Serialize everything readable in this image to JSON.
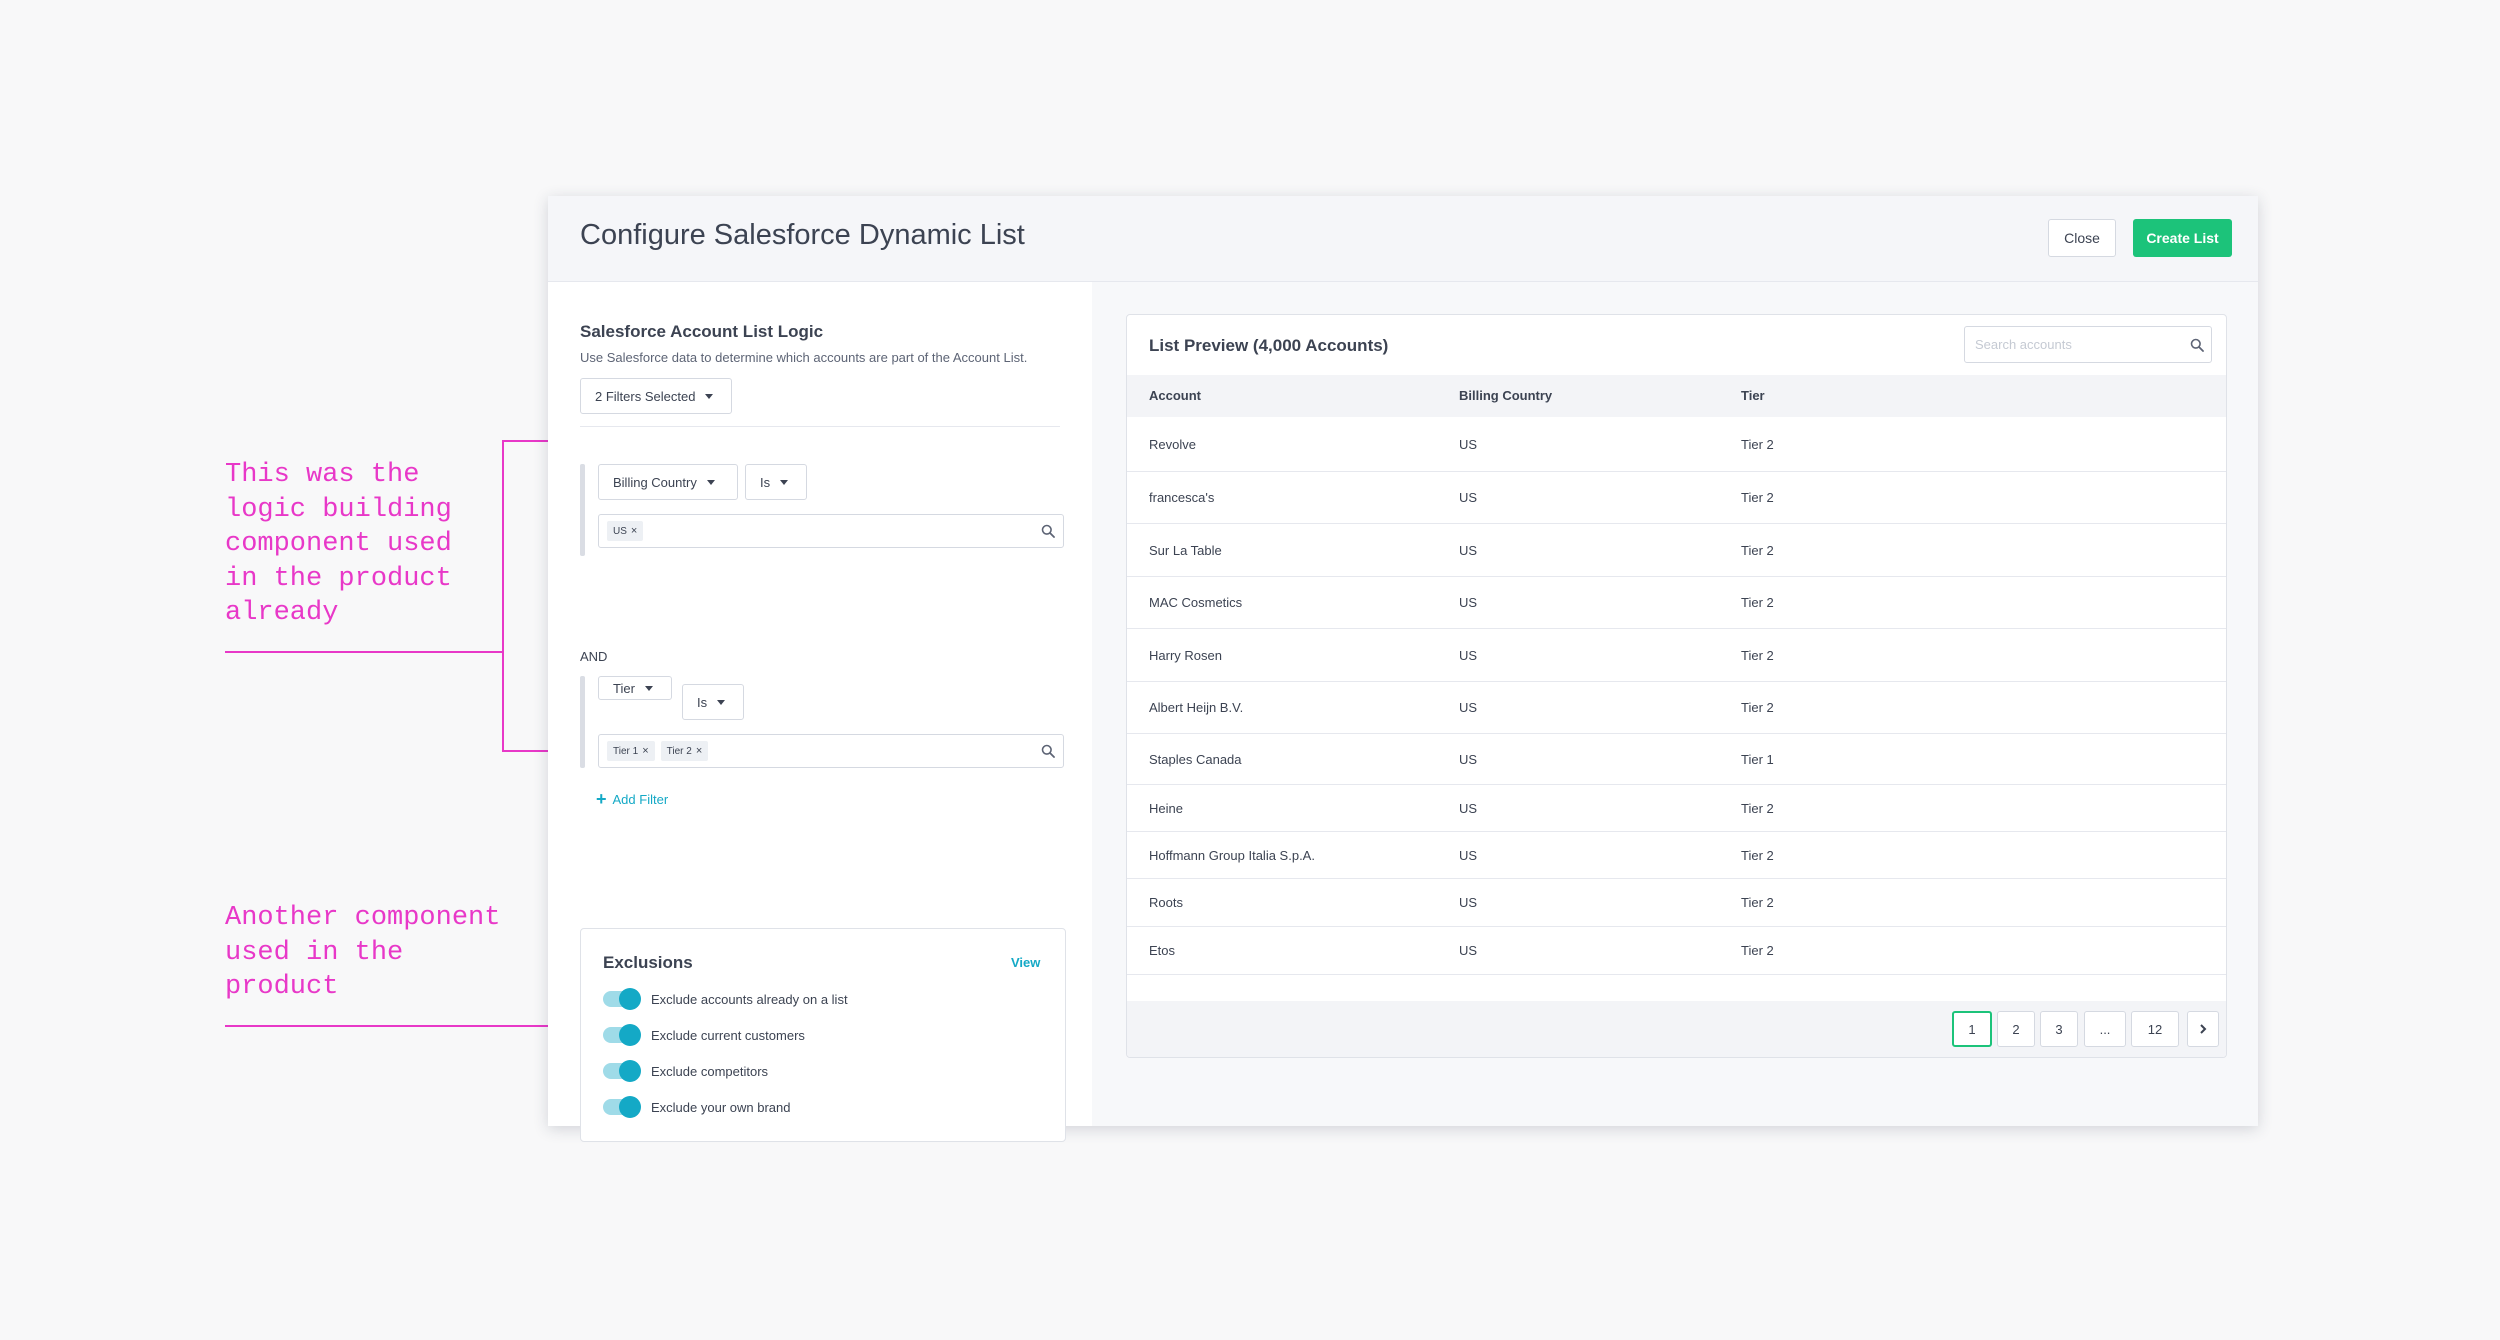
{
  "annotations": {
    "logic_note": "This was the\nlogic building\ncomponent used\nin the product\nalready",
    "exclusions_note": "Another component\nused in the\nproduct"
  },
  "modal": {
    "title": "Configure Salesforce Dynamic List",
    "close_label": "Close",
    "create_label": "Create List"
  },
  "logic": {
    "title": "Salesforce Account List Logic",
    "subtitle": "Use Salesforce data to determine which accounts are part of the Account List.",
    "filters_selected": "2 Filters Selected",
    "filters": [
      {
        "field": "Billing Country",
        "operator": "Is",
        "tags": [
          "US"
        ]
      },
      {
        "field": "Tier",
        "operator": "Is",
        "tags": [
          "Tier 1",
          "Tier 2"
        ]
      }
    ],
    "conjunction": "AND",
    "add_filter": "Add Filter"
  },
  "exclusions": {
    "title": "Exclusions",
    "view_label": "View",
    "items": [
      {
        "label": "Exclude accounts already on a list",
        "on": true
      },
      {
        "label": "Exclude current customers",
        "on": true
      },
      {
        "label": "Exclude competitors",
        "on": true
      },
      {
        "label": "Exclude your own brand",
        "on": true
      }
    ]
  },
  "preview": {
    "title": "List Preview (4,000 Accounts)",
    "search_placeholder": "Search accounts",
    "columns": [
      "Account",
      "Billing Country",
      "Tier"
    ],
    "rows": [
      [
        "Revolve",
        "US",
        "Tier 2"
      ],
      [
        "francesca's",
        "US",
        "Tier 2"
      ],
      [
        "Sur La Table",
        "US",
        "Tier 2"
      ],
      [
        "MAC Cosmetics",
        "US",
        "Tier 2"
      ],
      [
        "Harry Rosen",
        "US",
        "Tier 2"
      ],
      [
        "Albert Heijn B.V.",
        "US",
        "Tier 2"
      ],
      [
        "Staples Canada",
        "US",
        "Tier 1"
      ],
      [
        "Heine",
        "US",
        "Tier 2"
      ],
      [
        "Hoffmann Group Italia S.p.A.",
        "US",
        "Tier 2"
      ],
      [
        "Roots",
        "US",
        "Tier 2"
      ],
      [
        "Etos",
        "US",
        "Tier 2"
      ]
    ],
    "pagination": [
      "1",
      "2",
      "3",
      "...",
      "12"
    ],
    "current_page": "1"
  },
  "colors": {
    "accent_green": "#1cc37a",
    "accent_teal": "#14a9c6",
    "annotation_pink": "#e838c8"
  }
}
